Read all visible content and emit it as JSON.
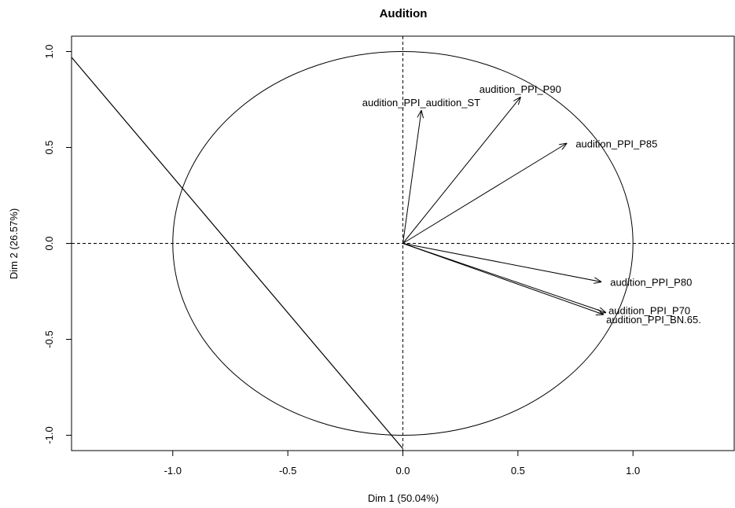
{
  "chart_data": {
    "type": "scatter",
    "title": "Audition",
    "xlabel": "Dim 1 (50.04%)",
    "ylabel": "Dim 2 (26.57%)",
    "xlim": [
      -1.44,
      1.44
    ],
    "ylim": [
      -1.08,
      1.08
    ],
    "xticks": [
      {
        "value": -1.0,
        "label": "-1.0"
      },
      {
        "value": -0.5,
        "label": "-0.5"
      },
      {
        "value": 0.0,
        "label": "0.0"
      },
      {
        "value": 0.5,
        "label": "0.5"
      },
      {
        "value": 1.0,
        "label": "1.0"
      }
    ],
    "yticks": [
      {
        "value": -1.0,
        "label": "-1.0"
      },
      {
        "value": -0.5,
        "label": "-0.5"
      },
      {
        "value": 0.0,
        "label": "0.0"
      },
      {
        "value": 0.5,
        "label": "0.5"
      },
      {
        "value": 1.0,
        "label": "1.0"
      }
    ],
    "unit_circle": true,
    "reference_lines": [
      {
        "axis": "x",
        "value": 0,
        "style": "dashed"
      },
      {
        "axis": "y",
        "value": 0,
        "style": "dashed"
      }
    ],
    "extra_line": {
      "x1": -1.44,
      "y1": 0.97,
      "x2": 0.0,
      "y2": -1.07
    },
    "variables": [
      {
        "name": "audition_PPI_audition_ST",
        "x": 0.08,
        "y": 0.69,
        "label_anchor": "center-above"
      },
      {
        "name": "audition_PPI_P90",
        "x": 0.51,
        "y": 0.76,
        "label_anchor": "center-above"
      },
      {
        "name": "audition_PPI_P85",
        "x": 0.71,
        "y": 0.52,
        "label_anchor": "right"
      },
      {
        "name": "audition_PPI_P80",
        "x": 0.86,
        "y": -0.2,
        "label_anchor": "right"
      },
      {
        "name": "audition_PPI_P70",
        "x": 0.88,
        "y": -0.36,
        "label_anchor": "right-above"
      },
      {
        "name": "audition_PPI_BN.65.",
        "x": 0.87,
        "y": -0.37,
        "label_anchor": "right-below"
      }
    ]
  }
}
